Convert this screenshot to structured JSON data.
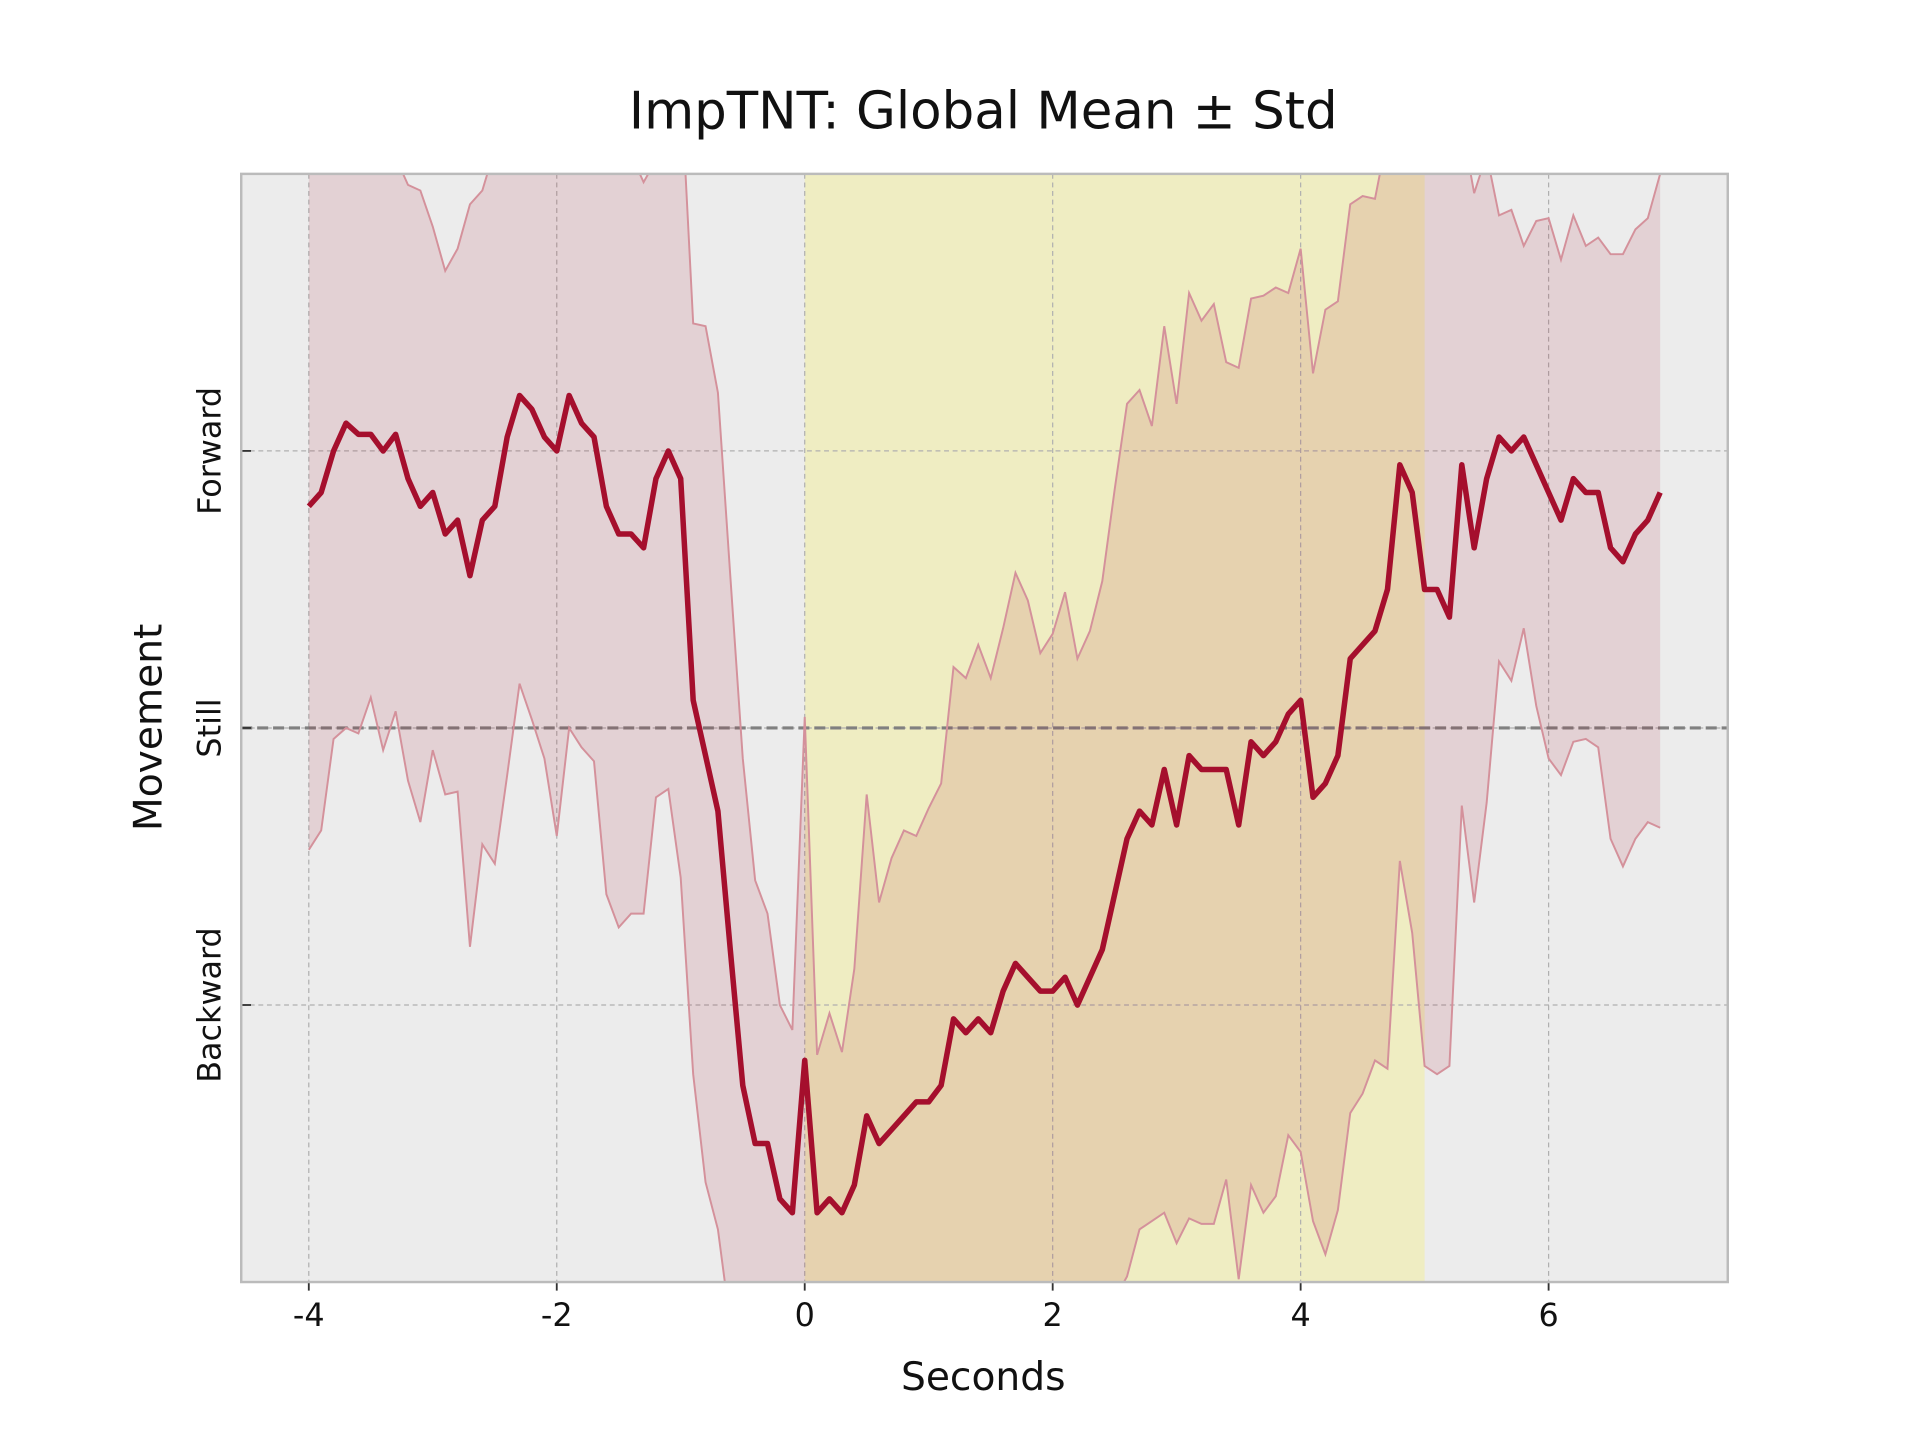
{
  "chart_data": {
    "type": "line",
    "title": "ImpTNT: Global Mean ± Std",
    "xlabel": "Seconds",
    "ylabel": "Movement",
    "x": [
      -4.0,
      -3.9,
      -3.8,
      -3.7,
      -3.6,
      -3.5,
      -3.4,
      -3.3,
      -3.2,
      -3.1,
      -3.0,
      -2.9,
      -2.8,
      -2.7,
      -2.6,
      -2.5,
      -2.4,
      -2.3,
      -2.2,
      -2.1,
      -2.0,
      -1.9,
      -1.8,
      -1.7,
      -1.6,
      -1.5,
      -1.4,
      -1.3,
      -1.2,
      -1.1,
      -1.0,
      -0.9,
      -0.8,
      -0.7,
      -0.6,
      -0.5,
      -0.4,
      -0.3,
      -0.2,
      -0.1,
      0.0,
      0.1,
      0.2,
      0.3,
      0.4,
      0.5,
      0.6,
      0.7,
      0.8,
      0.9,
      1.0,
      1.1,
      1.2,
      1.3,
      1.4,
      1.5,
      1.6,
      1.7,
      1.8,
      1.9,
      2.0,
      2.1,
      2.2,
      2.3,
      2.4,
      2.5,
      2.6,
      2.7,
      2.8,
      2.9,
      3.0,
      3.1,
      3.2,
      3.3,
      3.4,
      3.5,
      3.6,
      3.7,
      3.8,
      3.9,
      4.0,
      4.1,
      4.2,
      4.3,
      4.4,
      4.5,
      4.6,
      4.7,
      4.8,
      4.9,
      5.0,
      5.1,
      5.2,
      5.3,
      5.4,
      5.5,
      5.6,
      5.7,
      5.8,
      5.9,
      6.0,
      6.1,
      6.2,
      6.3,
      6.4,
      6.5,
      6.6,
      6.7,
      6.8,
      6.9
    ],
    "values": [
      0.8,
      0.85,
      1.0,
      1.1,
      1.06,
      1.06,
      1.0,
      1.06,
      0.9,
      0.8,
      0.85,
      0.7,
      0.75,
      0.55,
      0.75,
      0.8,
      1.05,
      1.2,
      1.15,
      1.05,
      1.0,
      1.2,
      1.1,
      1.05,
      0.8,
      0.7,
      0.7,
      0.65,
      0.9,
      1.0,
      0.9,
      0.1,
      -0.1,
      -0.3,
      -0.8,
      -1.29,
      -1.5,
      -1.5,
      -1.7,
      -1.75,
      -1.2,
      -1.75,
      -1.7,
      -1.75,
      -1.65,
      -1.4,
      -1.5,
      -1.45,
      -1.4,
      -1.35,
      -1.35,
      -1.29,
      -1.05,
      -1.1,
      -1.05,
      -1.1,
      -0.95,
      -0.85,
      -0.9,
      -0.95,
      -0.95,
      -0.9,
      -1.0,
      -0.9,
      -0.8,
      -0.6,
      -0.4,
      -0.3,
      -0.35,
      -0.15,
      -0.35,
      -0.1,
      -0.15,
      -0.15,
      -0.15,
      -0.35,
      -0.05,
      -0.1,
      -0.05,
      0.05,
      0.1,
      -0.25,
      -0.2,
      -0.1,
      0.25,
      0.3,
      0.35,
      0.5,
      0.95,
      0.85,
      0.5,
      0.5,
      0.4,
      0.95,
      0.65,
      0.9,
      1.05,
      1.0,
      1.05,
      0.95,
      0.85,
      0.75,
      0.9,
      0.85,
      0.85,
      0.65,
      0.6,
      0.7,
      0.75,
      0.85
    ],
    "lower": [
      -0.44,
      -0.37,
      -0.04,
      0.0,
      -0.02,
      0.11,
      -0.08,
      0.06,
      -0.19,
      -0.34,
      -0.08,
      -0.24,
      -0.23,
      -0.79,
      -0.42,
      -0.49,
      -0.17,
      0.16,
      0.03,
      -0.11,
      -0.39,
      0.0,
      -0.07,
      -0.12,
      -0.6,
      -0.72,
      -0.67,
      -0.67,
      -0.25,
      -0.22,
      -0.54,
      -1.25,
      -1.64,
      -1.81,
      -2.15,
      -2.47,
      -2.45,
      -2.33,
      -2.4,
      -2.41,
      -2.44,
      -2.32,
      -2.37,
      -2.33,
      -2.43,
      -2.56,
      -2.37,
      -2.43,
      -2.43,
      -2.31,
      -2.41,
      -2.38,
      -2.32,
      -2.38,
      -2.4,
      -2.38,
      -2.26,
      -2.26,
      -2.26,
      -2.17,
      -2.24,
      -2.29,
      -2.25,
      -2.15,
      -2.13,
      -2.06,
      -1.98,
      -1.81,
      -1.78,
      -1.75,
      -1.86,
      -1.77,
      -1.79,
      -1.79,
      -1.63,
      -1.99,
      -1.65,
      -1.75,
      -1.69,
      -1.47,
      -1.53,
      -1.78,
      -1.9,
      -1.74,
      -1.39,
      -1.32,
      -1.2,
      -1.23,
      -0.48,
      -0.74,
      -1.22,
      -1.25,
      -1.22,
      -0.28,
      -0.63,
      -0.27,
      0.24,
      0.17,
      0.36,
      0.08,
      -0.11,
      -0.17,
      -0.05,
      -0.04,
      -0.07,
      -0.4,
      -0.5,
      -0.4,
      -0.34,
      -0.36
    ],
    "upper": [
      2.04,
      2.07,
      2.04,
      2.2,
      2.14,
      2.01,
      2.08,
      2.06,
      1.96,
      1.94,
      1.81,
      1.65,
      1.73,
      1.89,
      1.94,
      2.09,
      2.27,
      2.24,
      2.27,
      2.21,
      2.39,
      2.4,
      2.27,
      2.22,
      2.2,
      2.12,
      2.07,
      1.97,
      2.05,
      2.22,
      2.34,
      1.46,
      1.45,
      1.21,
      0.55,
      -0.11,
      -0.55,
      -0.67,
      -1.0,
      -1.09,
      0.04,
      -1.18,
      -1.03,
      -1.17,
      -0.87,
      -0.24,
      -0.63,
      -0.47,
      -0.37,
      -0.39,
      -0.29,
      -0.2,
      0.22,
      0.18,
      0.3,
      0.18,
      0.36,
      0.56,
      0.46,
      0.27,
      0.34,
      0.49,
      0.25,
      0.35,
      0.53,
      0.86,
      1.17,
      1.22,
      1.09,
      1.45,
      1.17,
      1.57,
      1.47,
      1.53,
      1.32,
      1.3,
      1.55,
      1.56,
      1.59,
      1.57,
      1.73,
      1.28,
      1.51,
      1.54,
      1.89,
      1.92,
      1.91,
      2.14,
      2.38,
      2.44,
      2.22,
      2.25,
      2.02,
      2.18,
      1.93,
      2.07,
      1.85,
      1.87,
      1.74,
      1.83,
      1.84,
      1.69,
      1.85,
      1.74,
      1.77,
      1.71,
      1.71,
      1.8,
      1.84,
      2.0
    ],
    "color": "#a50f2d",
    "band_color": "#a50f2d",
    "band_edge_color": "#d4919b",
    "span": [
      0,
      5
    ],
    "span_color": "#f3eea0",
    "hline": 0,
    "hline_color": "#808080",
    "background": "#ececec",
    "grid": true,
    "xlim": [
      -4.545,
      7.445
    ],
    "xticks": [
      -4,
      -2,
      0,
      2,
      4,
      6
    ],
    "ylim": [
      -2,
      2
    ],
    "yticks": [
      {
        "value": -1,
        "label": "Backward"
      },
      {
        "value": 0,
        "label": "Still"
      },
      {
        "value": 1,
        "label": "Forward"
      }
    ]
  }
}
